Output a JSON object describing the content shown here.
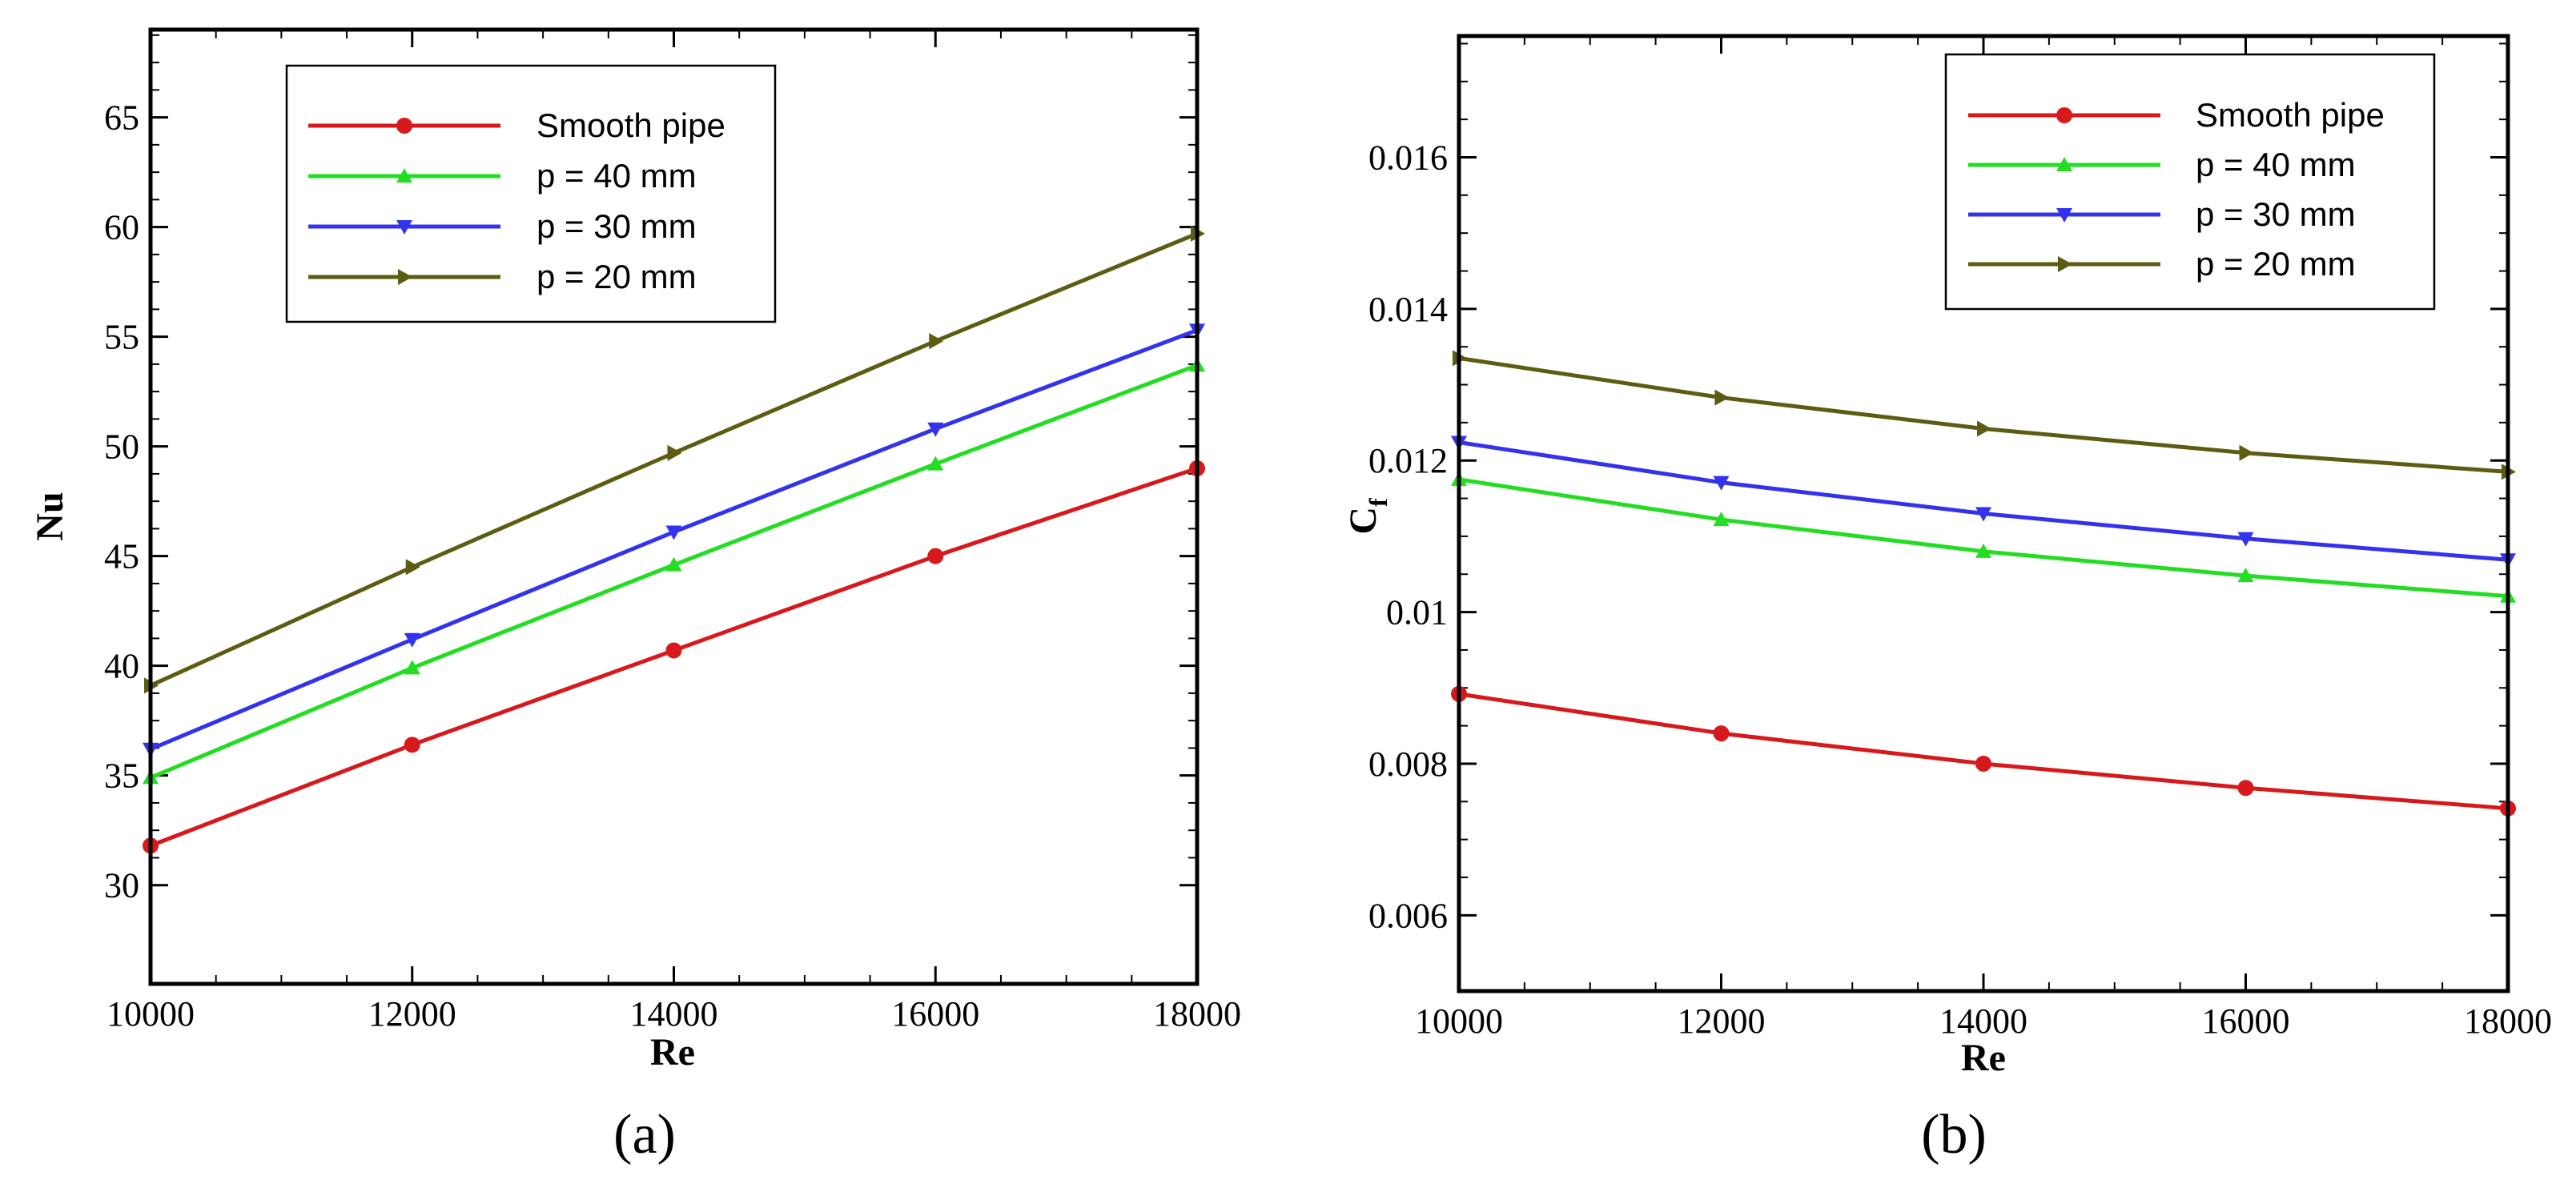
{
  "chart_data": [
    {
      "type": "line",
      "panel_label": "(a)",
      "title": "",
      "xlabel": "Re",
      "ylabel": "Nu",
      "xlim": [
        10000,
        18000
      ],
      "ylim": [
        25.5,
        69
      ],
      "x_ticks": [
        10000,
        12000,
        14000,
        16000,
        18000
      ],
      "x_tick_labels": [
        "10000",
        "12000",
        "14000",
        "16000",
        "18000"
      ],
      "y_ticks": [
        30,
        35,
        40,
        45,
        50,
        55,
        60,
        65
      ],
      "y_tick_labels": [
        "30",
        "35",
        "40",
        "45",
        "50",
        "55",
        "60",
        "65"
      ],
      "x": [
        10000,
        12000,
        14000,
        16000,
        18000
      ],
      "grid": false,
      "legend_position": "top-left",
      "series": [
        {
          "name": "Smooth pipe",
          "color": "#d7191c",
          "marker": "circle",
          "values": [
            31.8,
            36.4,
            40.7,
            45.0,
            49.0
          ]
        },
        {
          "name": "p = 40 mm",
          "color": "#22dd22",
          "marker": "triangle-up",
          "values": [
            34.9,
            39.9,
            44.6,
            49.2,
            53.7
          ]
        },
        {
          "name": "p = 30 mm",
          "color": "#3333ee",
          "marker": "triangle-down",
          "values": [
            36.2,
            41.2,
            46.1,
            50.8,
            55.3
          ]
        },
        {
          "name": "p = 20 mm",
          "color": "#5c5c12",
          "marker": "triangle-right",
          "values": [
            39.1,
            44.5,
            49.7,
            54.8,
            59.7
          ]
        }
      ]
    },
    {
      "type": "line",
      "panel_label": "(b)",
      "title": "",
      "xlabel": "Re",
      "ylabel": "C",
      "ylabel_subscript": "f",
      "xlim": [
        10000,
        18000
      ],
      "ylim": [
        0.005,
        0.0176
      ],
      "x_ticks": [
        10000,
        12000,
        14000,
        16000,
        18000
      ],
      "x_tick_labels": [
        "10000",
        "12000",
        "14000",
        "16000",
        "18000"
      ],
      "y_ticks": [
        0.006,
        0.008,
        0.01,
        0.012,
        0.014,
        0.016
      ],
      "y_tick_labels": [
        "0.006",
        "0.008",
        "0.01",
        "0.012",
        "0.014",
        "0.016"
      ],
      "x": [
        10000,
        12000,
        14000,
        16000,
        18000
      ],
      "grid": false,
      "legend_position": "top-right",
      "series": [
        {
          "name": "Smooth pipe",
          "color": "#d7191c",
          "marker": "circle",
          "values": [
            0.00892,
            0.0084,
            0.008,
            0.00768,
            0.00741
          ]
        },
        {
          "name": "p = 40 mm",
          "color": "#22dd22",
          "marker": "triangle-up",
          "values": [
            0.01175,
            0.01122,
            0.0108,
            0.01048,
            0.01021
          ]
        },
        {
          "name": "p = 30 mm",
          "color": "#3333ee",
          "marker": "triangle-down",
          "values": [
            0.01224,
            0.01171,
            0.0113,
            0.01097,
            0.01069
          ]
        },
        {
          "name": "p = 20 mm",
          "color": "#5c5c12",
          "marker": "triangle-right",
          "values": [
            0.01335,
            0.01283,
            0.01242,
            0.0121,
            0.01185
          ]
        }
      ]
    }
  ]
}
